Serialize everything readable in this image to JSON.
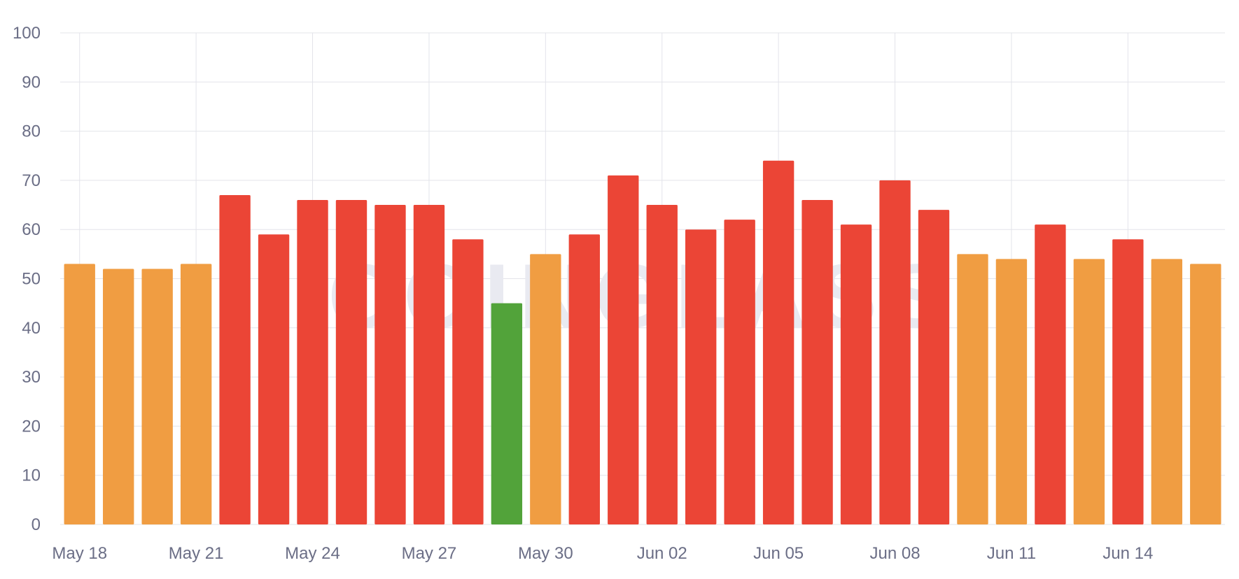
{
  "watermark": "COINGLASS",
  "chart_data": {
    "type": "bar",
    "categories": [
      "May 18",
      "May 19",
      "May 20",
      "May 21",
      "May 22",
      "May 23",
      "May 24",
      "May 25",
      "May 26",
      "May 27",
      "May 28",
      "May 29",
      "May 30",
      "May 31",
      "Jun 01",
      "Jun 02",
      "Jun 03",
      "Jun 04",
      "Jun 05",
      "Jun 06",
      "Jun 07",
      "Jun 08",
      "Jun 09",
      "Jun 10",
      "Jun 11",
      "Jun 12",
      "Jun 13",
      "Jun 14",
      "Jun 15",
      "Jun 16"
    ],
    "values": [
      53,
      52,
      52,
      53,
      67,
      59,
      66,
      66,
      65,
      65,
      58,
      45,
      55,
      59,
      71,
      65,
      60,
      62,
      74,
      66,
      61,
      70,
      64,
      55,
      54,
      61,
      54,
      58,
      54,
      53
    ],
    "x_tick_labels": [
      "May 18",
      "May 21",
      "May 24",
      "May 27",
      "May 30",
      "Jun 02",
      "Jun 05",
      "Jun 08",
      "Jun 11",
      "Jun 14"
    ],
    "y_tick_labels": [
      "0",
      "10",
      "20",
      "30",
      "40",
      "50",
      "60",
      "70",
      "80",
      "90",
      "100"
    ],
    "ylim": [
      0,
      100
    ],
    "grid": true,
    "colors": {
      "green": "#52a33a",
      "orange": "#f09d42",
      "red": "#eb4536",
      "grid": "#e3e4ea",
      "tick_text": "#6b6e86"
    },
    "color_thresholds": {
      "green_max": 45,
      "orange_max": 55
    }
  }
}
